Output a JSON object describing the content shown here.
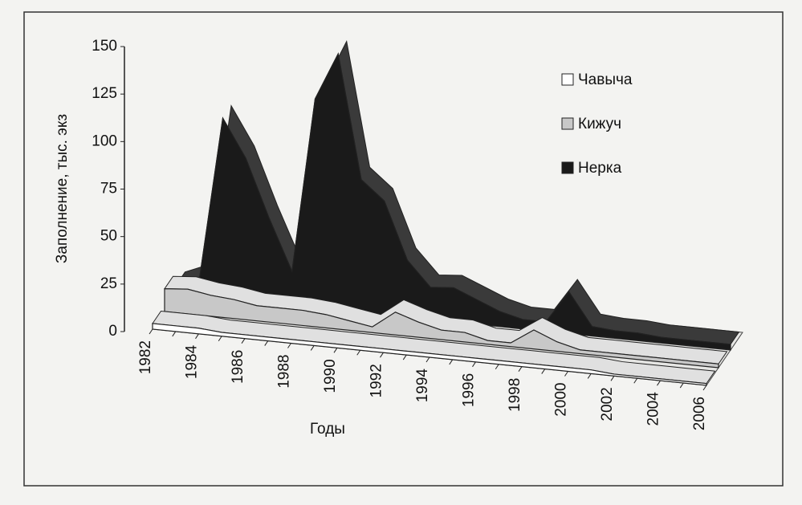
{
  "chart_data": {
    "type": "area3d",
    "y_label": "Заполнение, тыс. экз",
    "x_label": "Годы",
    "categories": [
      "1982",
      null,
      "1984",
      null,
      "1986",
      null,
      "1988",
      null,
      "1990",
      null,
      "1992",
      null,
      "1994",
      null,
      "1996",
      null,
      "1998",
      null,
      "2000",
      null,
      "2002",
      null,
      "2004",
      null,
      "2006"
    ],
    "series": [
      {
        "name": "Чавыча",
        "color": "#ffffff",
        "values": [
          3,
          3,
          3,
          2,
          2,
          2,
          2,
          2,
          2,
          2,
          2,
          2,
          2,
          2,
          2,
          2,
          2,
          2,
          2,
          2,
          1,
          1,
          1,
          1,
          1
        ]
      },
      {
        "name": "Кижуч",
        "color": "#c8c8c8",
        "values": [
          12,
          13,
          11,
          10,
          8,
          8,
          8,
          7,
          5,
          3,
          12,
          8,
          5,
          5,
          2,
          2,
          10,
          5,
          2,
          2,
          2,
          2,
          2,
          2,
          2
        ]
      },
      {
        "name": "Нерка",
        "color": "#1a1a1a",
        "values": [
          5,
          10,
          95,
          75,
          45,
          18,
          110,
          135,
          70,
          60,
          30,
          17,
          18,
          13,
          8,
          5,
          5,
          22,
          5,
          4,
          4,
          3,
          3,
          3,
          3
        ]
      }
    ],
    "ylim": [
      0,
      150
    ],
    "yticks": [
      0,
      25,
      50,
      75,
      100,
      125,
      150
    ]
  }
}
